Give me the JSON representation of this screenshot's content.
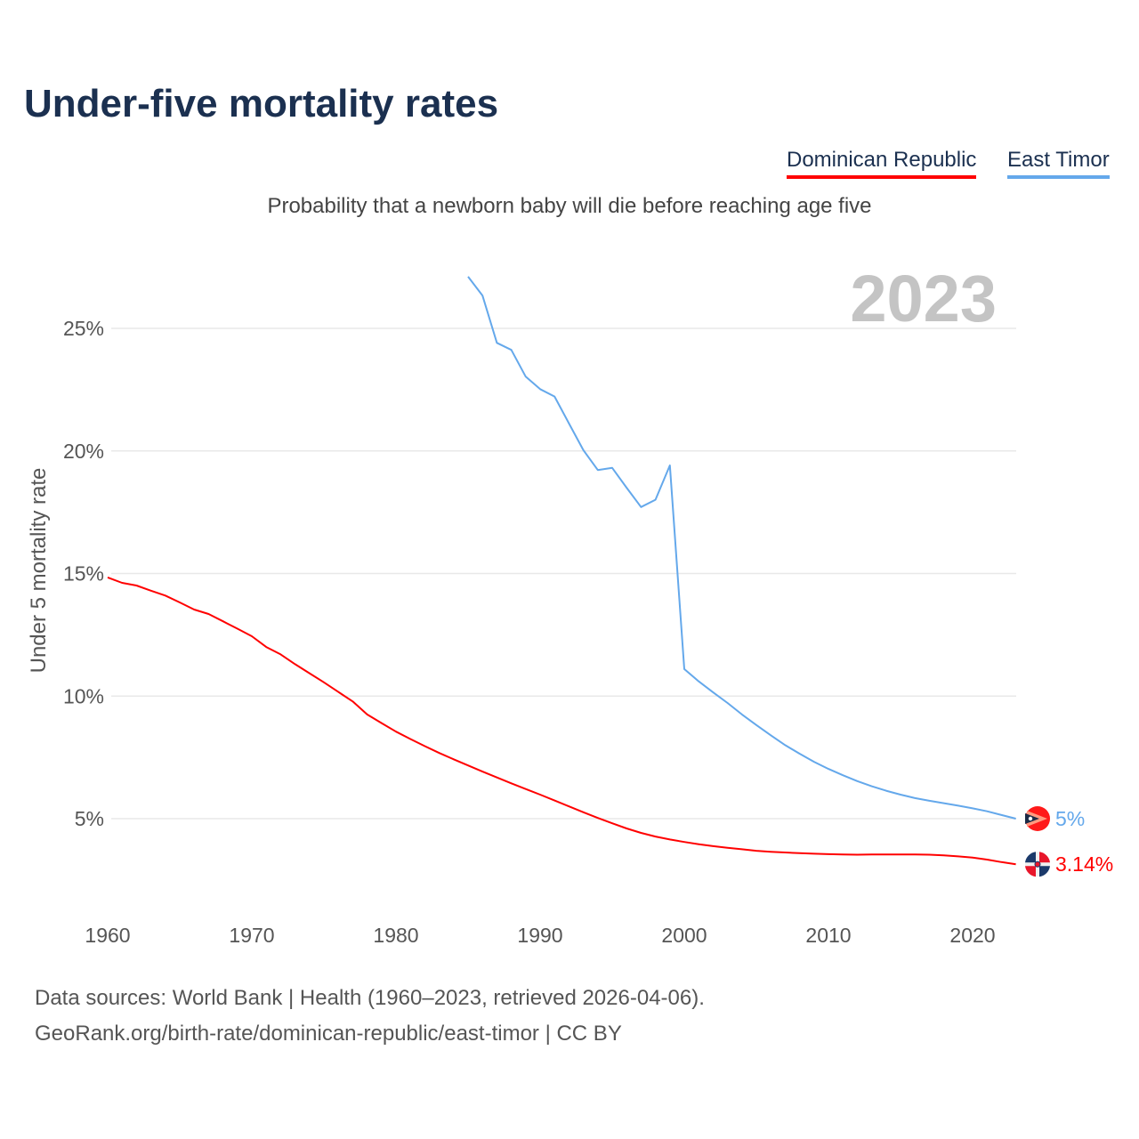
{
  "title": "Under-five mortality rates",
  "subtitle": "Probability that a newborn baby will die before reaching age five",
  "legend": [
    {
      "label": "Dominican Republic",
      "color": "#ff0000"
    },
    {
      "label": "East Timor",
      "color": "#64a8eb"
    }
  ],
  "year_label": "2023",
  "footer": {
    "line1": "Data sources: World Bank | Health (1960–2023, retrieved 2026-04-06).",
    "line2": "GeoRank.org/birth-rate/dominican-republic/east-timor | CC BY"
  },
  "chart_data": {
    "type": "line",
    "title": "Under-five mortality rates",
    "xlabel": "",
    "ylabel": "Under 5 mortality rate",
    "xlim": [
      1960,
      2023
    ],
    "ylim": [
      0,
      27
    ],
    "grid": true,
    "legend_placement": "top-right",
    "x_ticks": [
      1960,
      1970,
      1980,
      1990,
      2000,
      2010,
      2020
    ],
    "x_tick_labels": [
      "1960",
      "1970",
      "1980",
      "1990",
      "2000",
      "2010",
      "2020"
    ],
    "y_ticks": [
      5,
      10,
      15,
      20,
      25
    ],
    "y_tick_labels": [
      "5%",
      "10%",
      "15%",
      "20%",
      "25%"
    ],
    "series": [
      {
        "name": "Dominican Republic",
        "color": "#ff0000",
        "start_year": 1960,
        "end_label": "3.14%",
        "values": [
          14.84,
          14.62,
          14.51,
          14.3,
          14.1,
          13.82,
          13.53,
          13.35,
          13.05,
          12.75,
          12.44,
          12.0,
          11.7,
          11.3,
          10.93,
          10.56,
          10.17,
          9.78,
          9.25,
          8.9,
          8.55,
          8.25,
          7.96,
          7.68,
          7.42,
          7.17,
          6.92,
          6.68,
          6.44,
          6.21,
          5.98,
          5.74,
          5.5,
          5.26,
          5.03,
          4.81,
          4.6,
          4.42,
          4.27,
          4.15,
          4.05,
          3.96,
          3.88,
          3.81,
          3.75,
          3.69,
          3.65,
          3.62,
          3.59,
          3.57,
          3.55,
          3.54,
          3.53,
          3.54,
          3.54,
          3.54,
          3.54,
          3.53,
          3.5,
          3.46,
          3.41,
          3.33,
          3.23,
          3.14
        ]
      },
      {
        "name": "East Timor",
        "color": "#64a8eb",
        "start_year": 1985,
        "end_label": "5%",
        "values": [
          27.11,
          26.34,
          24.41,
          24.12,
          23.03,
          22.52,
          22.22,
          21.12,
          20.03,
          19.22,
          19.31,
          18.5,
          17.71,
          18.01,
          19.41,
          11.1,
          10.6,
          10.15,
          9.72,
          9.25,
          8.82,
          8.4,
          8.0,
          7.65,
          7.32,
          7.03,
          6.77,
          6.53,
          6.32,
          6.14,
          5.98,
          5.84,
          5.73,
          5.63,
          5.53,
          5.42,
          5.3,
          5.15,
          5.0
        ]
      }
    ]
  }
}
